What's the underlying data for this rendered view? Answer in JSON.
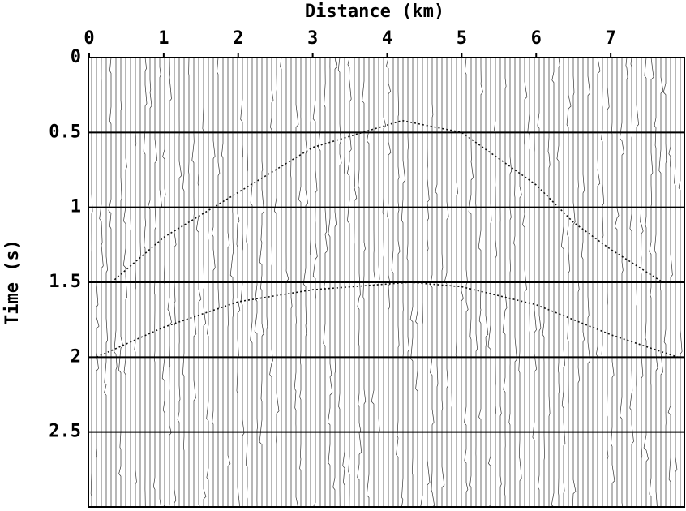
{
  "chart_data": {
    "type": "wiggle",
    "xlabel": "Distance (km)",
    "ylabel": "Time (s)",
    "xlim": [
      0,
      8
    ],
    "ylim": [
      0,
      3
    ],
    "xticks": [
      0,
      1,
      2,
      3,
      4,
      5,
      6,
      7
    ],
    "yticks": [
      0,
      0.5,
      1,
      1.5,
      2,
      2.5
    ],
    "grid": true,
    "y_inverted": true,
    "x_axis_position": "top",
    "series": [
      {
        "color": "#111111",
        "x": [
          0.3,
          1,
          2,
          3,
          4.2,
          5,
          6,
          6.5,
          7,
          7.7
        ],
        "values": [
          1.5,
          1.2,
          0.9,
          0.6,
          0.42,
          0.5,
          0.85,
          1.1,
          1.28,
          1.5
        ]
      },
      {
        "color": "#111111",
        "x": [
          0.1,
          1,
          2,
          3,
          4.3,
          5,
          6,
          7,
          7.9
        ],
        "values": [
          2.0,
          1.8,
          1.63,
          1.55,
          1.5,
          1.53,
          1.65,
          1.85,
          2.0
        ]
      }
    ]
  }
}
